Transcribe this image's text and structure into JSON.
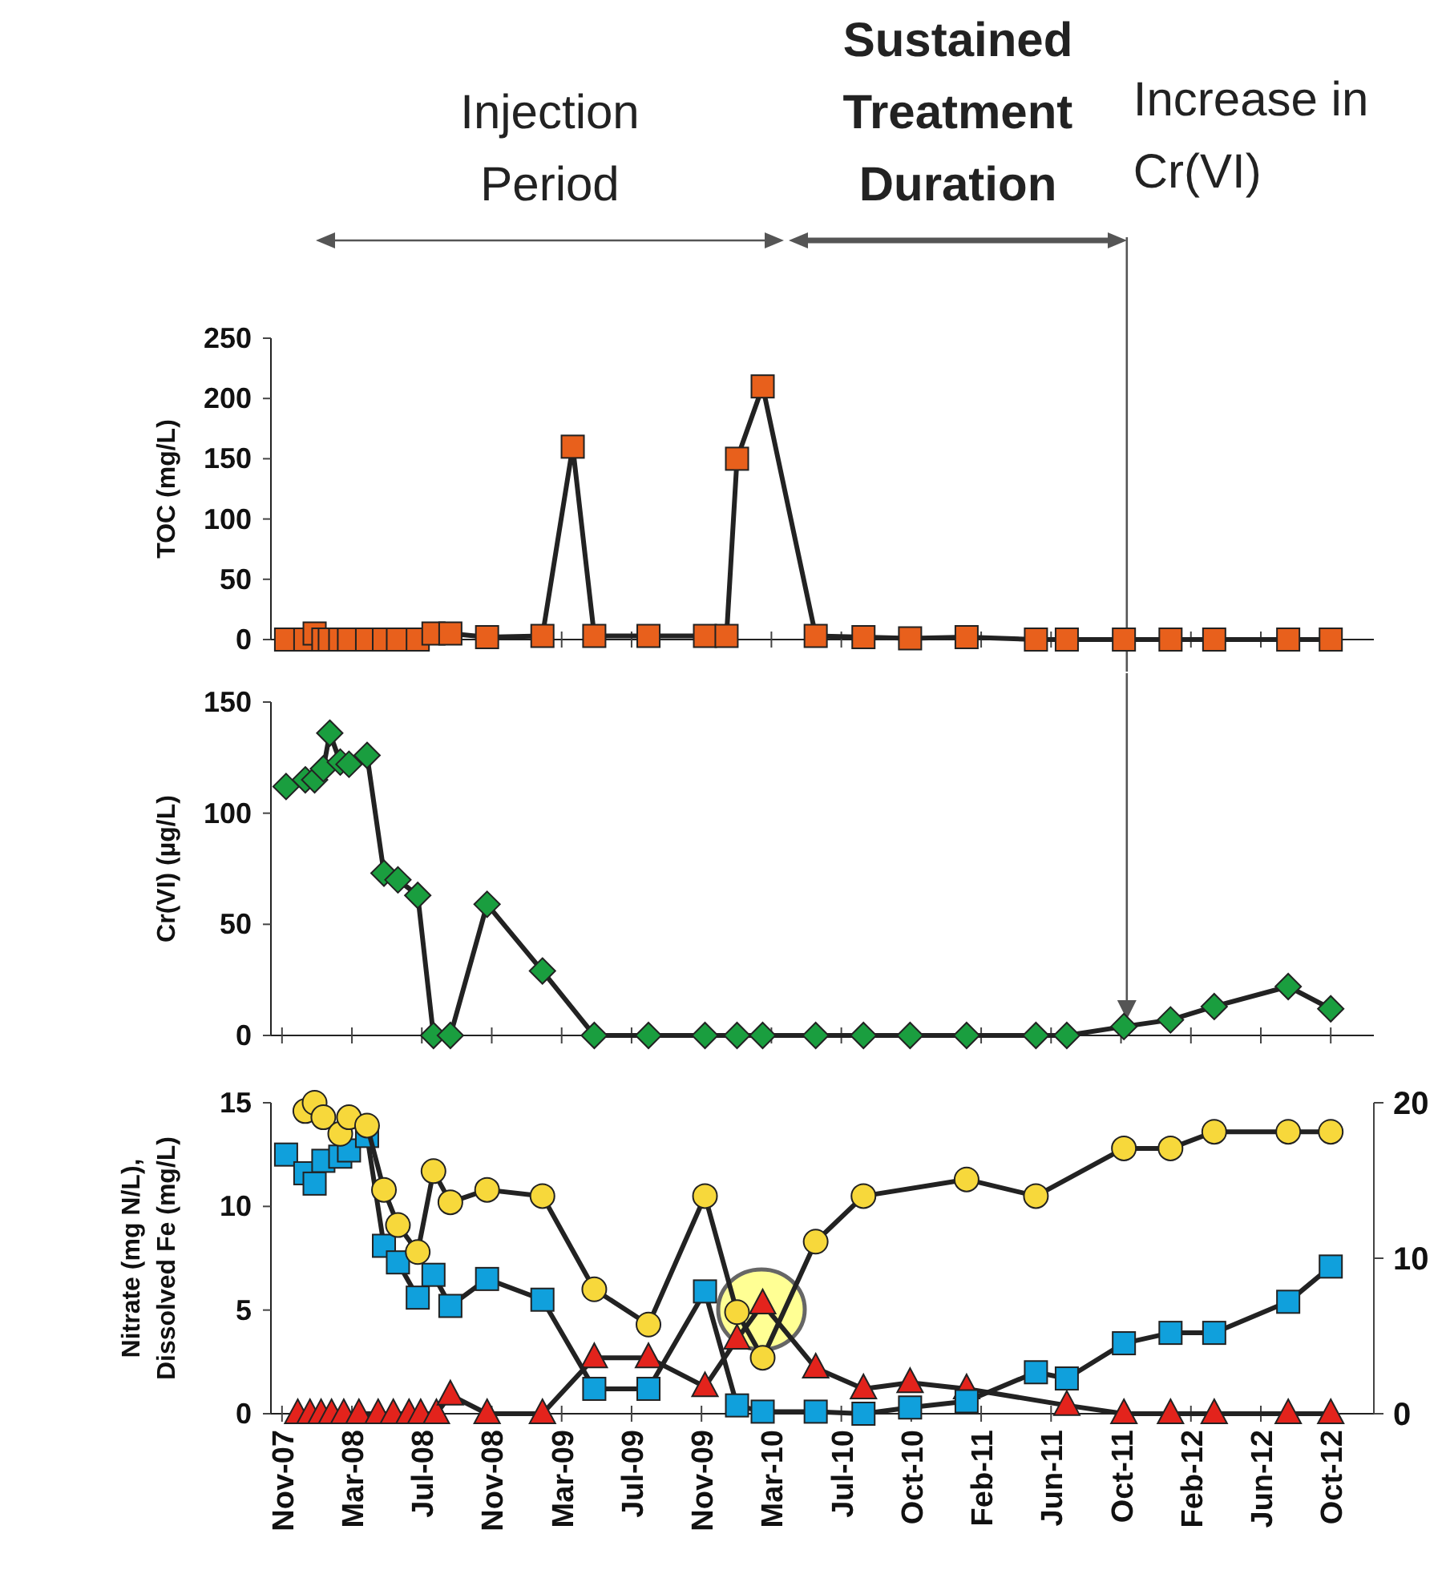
{
  "chart_data": [
    {
      "type": "line",
      "ylabel": "TOC  (mg/L)",
      "xlim": [
        "2007-10-27",
        "2013-01-01"
      ],
      "ylim": [
        0,
        250
      ],
      "yticks": [
        0,
        50,
        100,
        150,
        200,
        250
      ],
      "xticks": [
        {
          "value": "2007-11-15",
          "label": null
        },
        {
          "value": "2008-03-14",
          "label": null
        },
        {
          "value": "2008-07-12",
          "label": null
        },
        {
          "value": "2008-11-09",
          "label": null
        },
        {
          "value": "2009-03-09",
          "label": null
        },
        {
          "value": "2009-07-07",
          "label": null
        },
        {
          "value": "2009-11-04",
          "label": null
        },
        {
          "value": "2010-03-04",
          "label": null
        },
        {
          "value": "2010-07-02",
          "label": null
        },
        {
          "value": "2010-10-30",
          "label": null
        },
        {
          "value": "2011-02-27",
          "label": null
        },
        {
          "value": "2011-06-27",
          "label": null
        },
        {
          "value": "2011-10-25",
          "label": null
        },
        {
          "value": "2012-02-22",
          "label": null
        },
        {
          "value": "2012-06-21",
          "label": null
        },
        {
          "value": "2012-10-19",
          "label": null
        }
      ],
      "tick_labels": "y",
      "grid": false,
      "annotations": [
        "Injection Period",
        "Sustained Treatment Duration"
      ],
      "ref_lines": [
        {
          "axis": "x",
          "value": "2011-11-04",
          "label": "Increase in Cr(VI)",
          "color": "#555555"
        }
      ],
      "series": [
        {
          "color": "#e8601c",
          "marker": "square",
          "x": [
            "2007-11-22",
            "2007-12-25",
            "2008-01-10",
            "2008-01-25",
            "2008-02-05",
            "2008-02-23",
            "2008-03-09",
            "2008-04-09",
            "2008-05-08",
            "2008-06-01",
            "2008-07-05",
            "2008-08-01",
            "2008-08-30",
            "2008-11-01",
            "2009-02-04",
            "2009-03-28",
            "2009-05-04",
            "2009-08-05",
            "2009-11-10",
            "2009-12-17",
            "2010-01-04",
            "2010-02-17",
            "2010-05-19",
            "2010-08-09",
            "2010-10-28",
            "2011-02-02",
            "2011-06-01",
            "2011-07-24",
            "2011-10-30",
            "2012-01-18",
            "2012-04-02",
            "2012-08-07",
            "2012-10-19"
          ],
          "values": [
            0,
            0,
            5,
            0,
            0,
            0,
            0,
            0,
            0,
            0,
            0,
            5,
            5,
            2,
            3,
            160,
            3,
            3,
            3,
            3,
            150,
            210,
            3,
            2,
            1,
            2,
            0,
            0,
            0,
            0,
            0,
            0,
            0
          ]
        }
      ]
    },
    {
      "type": "line",
      "ylabel": "Cr(VI) (µg/L)",
      "xlim": [
        "2007-10-27",
        "2013-01-01"
      ],
      "ylim": [
        0,
        150
      ],
      "yticks": [
        0,
        50,
        100,
        150
      ],
      "xticks": [
        {
          "value": "2007-11-15",
          "label": null
        },
        {
          "value": "2008-03-14",
          "label": null
        },
        {
          "value": "2008-07-12",
          "label": null
        },
        {
          "value": "2008-11-09",
          "label": null
        },
        {
          "value": "2009-03-09",
          "label": null
        },
        {
          "value": "2009-07-07",
          "label": null
        },
        {
          "value": "2009-11-04",
          "label": null
        },
        {
          "value": "2010-03-04",
          "label": null
        },
        {
          "value": "2010-07-02",
          "label": null
        },
        {
          "value": "2010-10-30",
          "label": null
        },
        {
          "value": "2011-02-27",
          "label": null
        },
        {
          "value": "2011-06-27",
          "label": null
        },
        {
          "value": "2011-10-25",
          "label": null
        },
        {
          "value": "2012-02-22",
          "label": null
        },
        {
          "value": "2012-06-21",
          "label": null
        },
        {
          "value": "2012-10-19",
          "label": null
        }
      ],
      "tick_labels": "y",
      "grid": false,
      "ref_lines": [
        {
          "axis": "x",
          "value": "2011-11-04",
          "color": "#555555"
        }
      ],
      "series": [
        {
          "color": "#1a9e3f",
          "marker": "diamond",
          "x": [
            "2007-11-22",
            "2007-12-25",
            "2008-01-10",
            "2008-01-25",
            "2008-02-05",
            "2008-02-23",
            "2008-03-09",
            "2008-04-09",
            "2008-05-08",
            "2008-06-01",
            "2008-07-05",
            "2008-08-01",
            "2008-08-30",
            "2008-11-01",
            "2009-02-04",
            "2009-05-04",
            "2009-08-05",
            "2009-11-10",
            "2010-01-04",
            "2010-02-17",
            "2010-05-19",
            "2010-08-09",
            "2010-10-28",
            "2011-02-02",
            "2011-06-01",
            "2011-07-24",
            "2011-10-30",
            "2012-01-18",
            "2012-04-02",
            "2012-08-07",
            "2012-10-19"
          ],
          "values": [
            112,
            115,
            115,
            120,
            136,
            123,
            122,
            126,
            73,
            70,
            63,
            0,
            0,
            59,
            29,
            0,
            0,
            0,
            0,
            0,
            0,
            0,
            0,
            0,
            0,
            0,
            4,
            7,
            13,
            22,
            12
          ]
        }
      ]
    },
    {
      "type": "line",
      "ylabel": "Nitrate (mg N/L), Dissolved Fe (mg/L)",
      "xlim": [
        "2007-10-27",
        "2013-01-01"
      ],
      "ylim": [
        0,
        15
      ],
      "yticks": [
        0,
        5,
        10,
        15
      ],
      "y2lim": [
        0,
        20
      ],
      "y2ticks": [
        0,
        10,
        20
      ],
      "xticks": [
        {
          "value": "2007-11-15",
          "label": "Nov-07"
        },
        {
          "value": "2008-03-14",
          "label": "Mar-08"
        },
        {
          "value": "2008-07-12",
          "label": "Jul-08"
        },
        {
          "value": "2008-11-09",
          "label": "Nov-08"
        },
        {
          "value": "2009-03-09",
          "label": "Mar-09"
        },
        {
          "value": "2009-07-07",
          "label": "Jul-09"
        },
        {
          "value": "2009-11-04",
          "label": "Nov-09"
        },
        {
          "value": "2010-03-04",
          "label": "Mar-10"
        },
        {
          "value": "2010-07-02",
          "label": "Jul-10"
        },
        {
          "value": "2010-10-30",
          "label": "Oct-10"
        },
        {
          "value": "2011-02-27",
          "label": "Feb-11"
        },
        {
          "value": "2011-06-27",
          "label": "Jun-11"
        },
        {
          "value": "2011-10-25",
          "label": "Oct-11"
        },
        {
          "value": "2012-02-22",
          "label": "Feb-12"
        },
        {
          "value": "2012-06-21",
          "label": "Jun-12"
        },
        {
          "value": "2012-10-19",
          "label": "Oct-12"
        }
      ],
      "grid": false,
      "series": [
        {
          "color": "#f7d83b",
          "marker": "circle",
          "x": [
            "2007-12-25",
            "2008-01-10",
            "2008-01-25",
            "2008-02-23",
            "2008-03-09",
            "2008-04-09",
            "2008-05-08",
            "2008-06-01",
            "2008-07-05",
            "2008-08-01",
            "2008-08-30",
            "2008-11-01",
            "2009-02-04",
            "2009-05-04",
            "2009-08-05",
            "2009-11-10",
            "2010-01-04",
            "2010-02-17",
            "2010-05-19",
            "2010-08-09",
            "2011-02-02",
            "2011-06-01",
            "2011-10-30",
            "2012-01-18",
            "2012-04-02",
            "2012-08-07",
            "2012-10-19"
          ],
          "values": [
            14.6,
            15.0,
            14.3,
            13.5,
            14.3,
            13.9,
            10.8,
            9.1,
            7.8,
            11.7,
            10.2,
            10.8,
            10.5,
            6.0,
            4.3,
            10.5,
            4.9,
            2.7,
            8.3,
            10.5,
            11.3,
            10.5,
            12.8,
            12.8,
            13.6,
            13.6,
            13.6
          ]
        },
        {
          "color": "#10a0dc",
          "marker": "square",
          "x": [
            "2007-11-22",
            "2007-12-25",
            "2008-01-10",
            "2008-01-25",
            "2008-02-23",
            "2008-03-09",
            "2008-04-09",
            "2008-05-08",
            "2008-06-01",
            "2008-07-05",
            "2008-08-01",
            "2008-08-30",
            "2008-11-01",
            "2009-02-04",
            "2009-05-04",
            "2009-08-05",
            "2009-11-10",
            "2010-01-04",
            "2010-02-17",
            "2010-05-19",
            "2010-08-09",
            "2010-10-28",
            "2011-02-02",
            "2011-06-01",
            "2011-07-24",
            "2011-10-30",
            "2012-01-18",
            "2012-04-02",
            "2012-08-07",
            "2012-10-19"
          ],
          "values": [
            12.5,
            11.6,
            11.1,
            12.2,
            12.4,
            12.7,
            13.4,
            8.1,
            7.3,
            5.6,
            6.7,
            5.2,
            6.5,
            5.5,
            1.2,
            1.2,
            5.9,
            0.4,
            0.1,
            0.1,
            0,
            0.3,
            0.6,
            2.0,
            1.7,
            3.4,
            3.9,
            3.9,
            5.4,
            7.1
          ]
        },
        {
          "color": "#e3231c",
          "marker": "triangle",
          "x": [
            "2007-12-12",
            "2008-01-02",
            "2008-01-21",
            "2008-02-08",
            "2008-02-29",
            "2008-03-26",
            "2008-04-28",
            "2008-05-24",
            "2008-06-20",
            "2008-07-10",
            "2008-08-06",
            "2008-08-30",
            "2008-11-01",
            "2009-02-04",
            "2009-05-04",
            "2009-08-05",
            "2009-11-10",
            "2010-01-04",
            "2010-02-17",
            "2010-05-19",
            "2010-08-09",
            "2010-10-28",
            "2011-02-02",
            "2011-07-24",
            "2011-10-30",
            "2012-01-18",
            "2012-04-02",
            "2012-08-07",
            "2012-10-19"
          ],
          "values": [
            0,
            0,
            0,
            0,
            0,
            0,
            0,
            0,
            0,
            0,
            0,
            0.9,
            0,
            0,
            2.7,
            2.7,
            1.3,
            3.6,
            5.3,
            2.2,
            1.2,
            1.5,
            1.2,
            0.4,
            0,
            0,
            0,
            0,
            0
          ]
        }
      ]
    }
  ]
}
